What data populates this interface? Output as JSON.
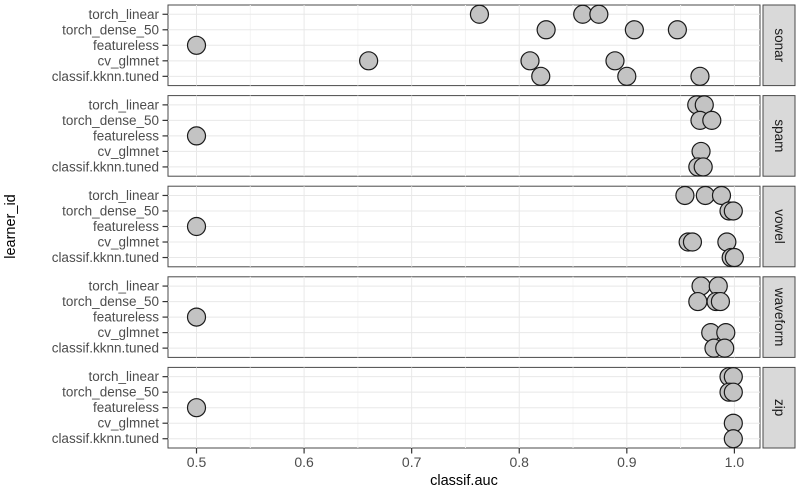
{
  "chart_data": {
    "type": "scatter",
    "title": "",
    "xlabel": "classif.auc",
    "ylabel": "learner_id",
    "x_ticks": [
      0.5,
      0.6,
      0.7,
      0.8,
      0.9,
      1.0
    ],
    "x_tick_labels": [
      "0.5",
      "0.6",
      "0.7",
      "0.8",
      "0.9",
      "1.0"
    ],
    "x_minor_ticks": [
      0.55,
      0.65,
      0.75,
      0.85,
      0.95
    ],
    "xlim": [
      0.4735,
      1.0238
    ],
    "grid": true,
    "legend": "none",
    "facet_side": "right",
    "categories_top_to_bottom": [
      "torch_linear",
      "torch_dense_50",
      "featureless",
      "cv_glmnet",
      "classif.kknn.tuned"
    ],
    "facets": [
      {
        "label": "sonar",
        "series": [
          {
            "learner": "torch_linear",
            "values": [
              0.763,
              0.859,
              0.874
            ]
          },
          {
            "learner": "torch_dense_50",
            "values": [
              0.825,
              0.907,
              0.947
            ]
          },
          {
            "learner": "featureless",
            "values": [
              0.5
            ]
          },
          {
            "learner": "cv_glmnet",
            "values": [
              0.66,
              0.81,
              0.889
            ]
          },
          {
            "learner": "classif.kknn.tuned",
            "values": [
              0.82,
              0.9,
              0.968
            ]
          }
        ]
      },
      {
        "label": "spam",
        "series": [
          {
            "learner": "torch_linear",
            "values": [
              0.965,
              0.972
            ]
          },
          {
            "learner": "torch_dense_50",
            "values": [
              0.968,
              0.979
            ]
          },
          {
            "learner": "featureless",
            "values": [
              0.5
            ]
          },
          {
            "learner": "cv_glmnet",
            "values": [
              0.969
            ]
          },
          {
            "learner": "classif.kknn.tuned",
            "values": [
              0.966,
              0.971
            ]
          }
        ]
      },
      {
        "label": "vowel",
        "series": [
          {
            "learner": "torch_linear",
            "values": [
              0.954,
              0.973,
              0.988
            ]
          },
          {
            "learner": "torch_dense_50",
            "values": [
              0.995,
              0.999
            ]
          },
          {
            "learner": "featureless",
            "values": [
              0.5
            ]
          },
          {
            "learner": "cv_glmnet",
            "values": [
              0.957,
              0.961,
              0.993
            ]
          },
          {
            "learner": "classif.kknn.tuned",
            "values": [
              0.997,
              1.0
            ]
          }
        ]
      },
      {
        "label": "waveform",
        "series": [
          {
            "learner": "torch_linear",
            "values": [
              0.969,
              0.985
            ]
          },
          {
            "learner": "torch_dense_50",
            "values": [
              0.966,
              0.983,
              0.987
            ]
          },
          {
            "learner": "featureless",
            "values": [
              0.5
            ]
          },
          {
            "learner": "cv_glmnet",
            "values": [
              0.978,
              0.992
            ]
          },
          {
            "learner": "classif.kknn.tuned",
            "values": [
              0.981,
              0.991
            ]
          }
        ]
      },
      {
        "label": "zip",
        "series": [
          {
            "learner": "torch_linear",
            "values": [
              0.995,
              0.999
            ]
          },
          {
            "learner": "torch_dense_50",
            "values": [
              0.995,
              0.999
            ]
          },
          {
            "learner": "featureless",
            "values": [
              0.5
            ]
          },
          {
            "learner": "cv_glmnet",
            "values": [
              0.999
            ]
          },
          {
            "learner": "classif.kknn.tuned",
            "values": [
              0.999
            ]
          }
        ]
      }
    ],
    "colors": {
      "point_fill": "#c3c3c3",
      "point_stroke": "#1a1a1a",
      "panel_bg": "#ffffff",
      "panel_border": "#4a4a4a",
      "grid_major": "#e8e8e8",
      "grid_minor": "#f4f4f4",
      "strip_fill": "#d9d9d9",
      "strip_border": "#4a4a4a",
      "strip_text": "#1a1a1a",
      "tick_text": "#4d4d4d",
      "axis_title_text": "#000000",
      "tick_mark": "#333333"
    }
  }
}
